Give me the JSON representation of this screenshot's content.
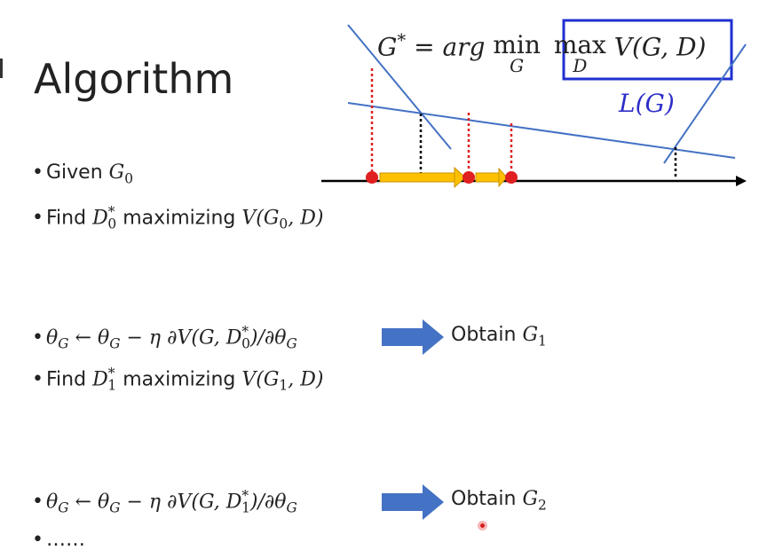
{
  "slide": {
    "title": "Algorithm",
    "formula": {
      "lhs": "G",
      "lhs_sup": "*",
      "eq": " = ",
      "arg": "arg",
      "min": "min",
      "min_sub": "G",
      "max": "max",
      "max_sub": "D",
      "v": "V(G, D)"
    },
    "curve_label": "L(G)",
    "bullets": [
      {
        "id": "b1",
        "text": "Given ",
        "math": "G",
        "sub": "0"
      },
      {
        "id": "b2",
        "text": "Find ",
        "math": "D",
        "sub": "0",
        "sup": "*",
        "text2": " maximizing ",
        "expr": "V(G",
        "expr_sub": "0",
        "expr_end": ", D)"
      },
      {
        "id": "b3",
        "update": "θ",
        "update_sub": "G",
        "arrow": " ← ",
        "rhs": "θ",
        "rhs_sub": "G",
        "minus": " − η ∂V(G, D",
        "d_sub": "0",
        "d_sup": "*",
        "tail": ")/∂θ",
        "tail_sub": "G",
        "obtain": "Obtain ",
        "obtain_math": "G",
        "obtain_sub": "1"
      },
      {
        "id": "b4",
        "text": "Find ",
        "math": "D",
        "sub": "1",
        "sup": "*",
        "text2": " maximizing ",
        "expr": "V(G",
        "expr_sub": "1",
        "expr_end": ", D)"
      },
      {
        "id": "b5",
        "update": "θ",
        "update_sub": "G",
        "arrow": " ← ",
        "rhs": "θ",
        "rhs_sub": "G",
        "minus": " − η ∂V(G, D",
        "d_sub": "1",
        "d_sup": "*",
        "tail": ")/∂θ",
        "tail_sub": "G",
        "obtain": "Obtain ",
        "obtain_math": "G",
        "obtain_sub": "2"
      },
      {
        "id": "b6",
        "text": "……"
      }
    ],
    "bullet_mark": "•",
    "colors": {
      "blue_line": "#4472c4",
      "box": "#1f2fd0",
      "red": "#e02020",
      "orange": "#ffc000",
      "arrow_blue": "#4472c4"
    }
  }
}
